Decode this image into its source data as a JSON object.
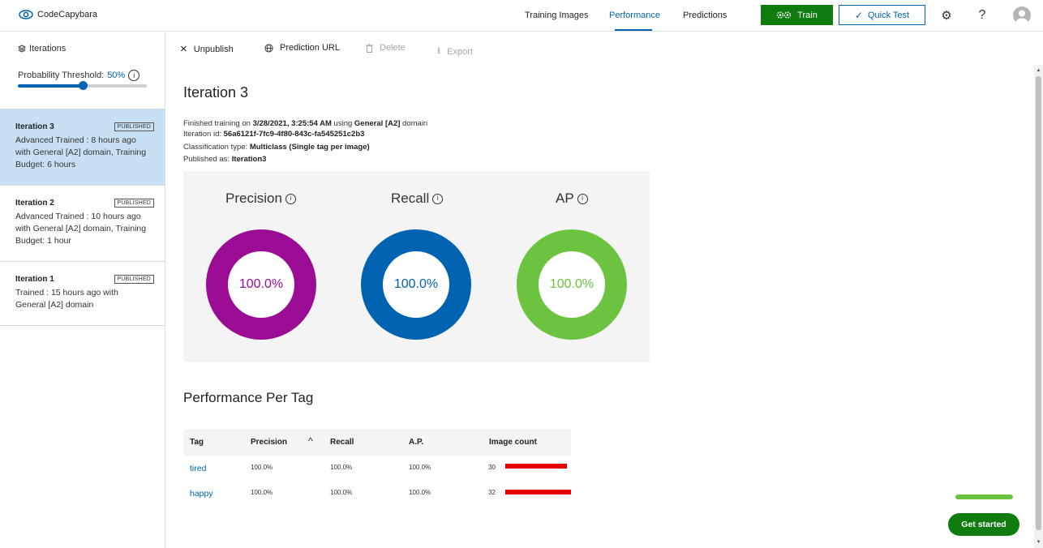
{
  "header": {
    "app_name": "CodeCapybara",
    "nav": [
      "Training Images",
      "Performance",
      "Predictions"
    ],
    "active_nav": "Performance",
    "train_label": "Train",
    "quick_test_label": "Quick Test",
    "settings_icon": "gear-icon",
    "help_label": "?"
  },
  "sidebar": {
    "heading": "Iterations",
    "threshold_label": "Probability Threshold:",
    "threshold_value": "50%",
    "threshold_fraction": 0.5,
    "iterations": [
      {
        "title": "Iteration 3",
        "badge": "PUBLISHED",
        "desc": "Advanced Trained : 8 hours ago with General [A2] domain, Training Budget: 6 hours",
        "selected": true
      },
      {
        "title": "Iteration 2",
        "badge": "PUBLISHED",
        "desc": "Advanced Trained : 10 hours ago with General [A2] domain, Training Budget: 1 hour",
        "selected": false
      },
      {
        "title": "Iteration 1",
        "badge": "PUBLISHED",
        "desc": "Trained : 15 hours ago with General [A2] domain",
        "selected": false
      }
    ]
  },
  "toolbar": {
    "unpublish": "Unpublish",
    "prediction_url": "Prediction URL",
    "delete": "Delete",
    "export": "Export"
  },
  "main": {
    "title": "Iteration 3",
    "meta": {
      "finished_prefix": "Finished training on ",
      "finished_date": "3/28/2021, 3:25:54 AM",
      "using": " using ",
      "domain": "General [A2]",
      "domain_suffix": " domain",
      "iteration_id_label": "Iteration id: ",
      "iteration_id": "56a6121f-7fc9-4f80-843c-fa545251c2b3",
      "classification_label": "Classification type: ",
      "classification": "Multiclass (Single tag per image)",
      "published_label": "Published as: ",
      "published": "Iteration3"
    },
    "metrics": [
      {
        "label": "Precision",
        "value": "100.0%",
        "color": "#9b0c94"
      },
      {
        "label": "Recall",
        "value": "100.0%",
        "color": "#0063b1"
      },
      {
        "label": "AP",
        "value": "100.0%",
        "color": "#6bc33f"
      }
    ],
    "per_tag_title": "Performance Per Tag",
    "table": {
      "headers": [
        "Tag",
        "Precision",
        "Recall",
        "A.P.",
        "Image count"
      ],
      "rows": [
        {
          "tag": "tired",
          "precision": "100.0%",
          "recall": "100.0%",
          "ap": "100.0%",
          "count": "30",
          "count_value": 30
        },
        {
          "tag": "happy",
          "precision": "100.0%",
          "recall": "100.0%",
          "ap": "100.0%",
          "count": "32",
          "count_value": 32
        }
      ]
    }
  },
  "get_started": "Get started"
}
